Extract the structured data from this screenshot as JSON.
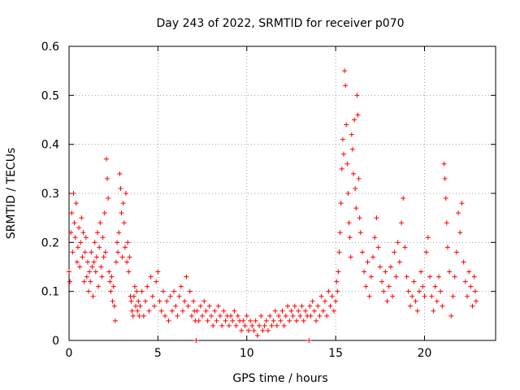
{
  "chart_data": {
    "type": "scatter",
    "title": "Day 243 of 2022, SRMTID for receiver p070",
    "xlabel": "GPS time / hours",
    "ylabel": "SRMTID / TECUs",
    "xlim": [
      0,
      24
    ],
    "ylim": [
      0,
      0.6
    ],
    "xticks": [
      0,
      5,
      10,
      15,
      20
    ],
    "yticks": [
      0,
      0.1,
      0.2,
      0.3,
      0.4,
      0.5,
      0.6
    ],
    "xtick_labels": [
      "0",
      "5",
      "10",
      "15",
      "20"
    ],
    "ytick_labels": [
      "0",
      "0.1",
      "0.2",
      "0.3",
      "0.4",
      "0.5",
      "0.6"
    ],
    "grid": true,
    "marker": "+",
    "color": "#ff0000",
    "series": [
      {
        "name": "SRMTID",
        "points": [
          [
            0.0,
            0.14
          ],
          [
            0.05,
            0.12
          ],
          [
            0.1,
            0.22
          ],
          [
            0.15,
            0.26
          ],
          [
            0.2,
            0.18
          ],
          [
            0.25,
            0.3
          ],
          [
            0.3,
            0.24
          ],
          [
            0.35,
            0.21
          ],
          [
            0.4,
            0.28
          ],
          [
            0.45,
            0.16
          ],
          [
            0.5,
            0.19
          ],
          [
            0.55,
            0.23
          ],
          [
            0.6,
            0.15
          ],
          [
            0.65,
            0.2
          ],
          [
            0.7,
            0.25
          ],
          [
            0.75,
            0.17
          ],
          [
            0.8,
            0.22
          ],
          [
            0.85,
            0.12
          ],
          [
            0.9,
            0.18
          ],
          [
            0.95,
            0.21
          ],
          [
            1.0,
            0.13
          ],
          [
            1.05,
            0.16
          ],
          [
            1.1,
            0.1
          ],
          [
            1.15,
            0.14
          ],
          [
            1.2,
            0.12
          ],
          [
            1.25,
            0.18
          ],
          [
            1.3,
            0.15
          ],
          [
            1.35,
            0.09
          ],
          [
            1.4,
            0.16
          ],
          [
            1.45,
            0.2
          ],
          [
            1.5,
            0.14
          ],
          [
            1.55,
            0.17
          ],
          [
            1.6,
            0.22
          ],
          [
            1.65,
            0.11
          ],
          [
            1.7,
            0.19
          ],
          [
            1.75,
            0.24
          ],
          [
            1.8,
            0.15
          ],
          [
            1.85,
            0.13
          ],
          [
            1.9,
            0.21
          ],
          [
            1.95,
            0.17
          ],
          [
            2.0,
            0.26
          ],
          [
            2.05,
            0.18
          ],
          [
            2.1,
            0.37
          ],
          [
            2.15,
            0.33
          ],
          [
            2.2,
            0.29
          ],
          [
            2.25,
            0.14
          ],
          [
            2.3,
            0.12
          ],
          [
            2.35,
            0.1
          ],
          [
            2.4,
            0.13
          ],
          [
            2.45,
            0.08
          ],
          [
            2.5,
            0.11
          ],
          [
            2.55,
            0.07
          ],
          [
            2.6,
            0.04
          ],
          [
            2.65,
            0.16
          ],
          [
            2.7,
            0.2
          ],
          [
            2.75,
            0.18
          ],
          [
            2.8,
            0.22
          ],
          [
            2.85,
            0.34
          ],
          [
            2.9,
            0.31
          ],
          [
            2.95,
            0.26
          ],
          [
            3.0,
            0.17
          ],
          [
            3.05,
            0.28
          ],
          [
            3.1,
            0.24
          ],
          [
            3.15,
            0.19
          ],
          [
            3.2,
            0.3
          ],
          [
            3.25,
            0.16
          ],
          [
            3.3,
            0.2
          ],
          [
            3.35,
            0.14
          ],
          [
            3.4,
            0.17
          ],
          [
            3.45,
            0.09
          ],
          [
            3.5,
            0.08
          ],
          [
            3.55,
            0.06
          ],
          [
            3.6,
            0.05
          ],
          [
            3.65,
            0.09
          ],
          [
            3.7,
            0.11
          ],
          [
            3.75,
            0.07
          ],
          [
            3.8,
            0.1
          ],
          [
            3.85,
            0.06
          ],
          [
            3.9,
            0.08
          ],
          [
            3.95,
            0.05
          ],
          [
            4.0,
            0.07
          ],
          [
            4.1,
            0.1
          ],
          [
            4.2,
            0.05
          ],
          [
            4.3,
            0.08
          ],
          [
            4.4,
            0.11
          ],
          [
            4.5,
            0.06
          ],
          [
            4.6,
            0.13
          ],
          [
            4.7,
            0.09
          ],
          [
            4.8,
            0.07
          ],
          [
            4.9,
            0.12
          ],
          [
            5.0,
            0.14
          ],
          [
            5.1,
            0.08
          ],
          [
            5.2,
            0.06
          ],
          [
            5.3,
            0.1
          ],
          [
            5.4,
            0.05
          ],
          [
            5.5,
            0.08
          ],
          [
            5.6,
            0.04
          ],
          [
            5.7,
            0.09
          ],
          [
            5.8,
            0.06
          ],
          [
            5.9,
            0.1
          ],
          [
            6.0,
            0.07
          ],
          [
            6.1,
            0.05
          ],
          [
            6.2,
            0.09
          ],
          [
            6.3,
            0.11
          ],
          [
            6.4,
            0.06
          ],
          [
            6.5,
            0.08
          ],
          [
            6.6,
            0.13
          ],
          [
            6.7,
            0.07
          ],
          [
            6.8,
            0.1
          ],
          [
            6.9,
            0.05
          ],
          [
            7.0,
            0.08
          ],
          [
            7.05,
            0.06
          ],
          [
            7.1,
            0.04
          ],
          [
            7.15,
            0.0
          ],
          [
            7.2,
            0.06
          ],
          [
            7.3,
            0.04
          ],
          [
            7.4,
            0.07
          ],
          [
            7.5,
            0.05
          ],
          [
            7.6,
            0.08
          ],
          [
            7.7,
            0.06
          ],
          [
            7.8,
            0.04
          ],
          [
            7.9,
            0.07
          ],
          [
            8.0,
            0.05
          ],
          [
            8.1,
            0.03
          ],
          [
            8.2,
            0.06
          ],
          [
            8.3,
            0.04
          ],
          [
            8.4,
            0.07
          ],
          [
            8.5,
            0.05
          ],
          [
            8.6,
            0.03
          ],
          [
            8.7,
            0.06
          ],
          [
            8.8,
            0.04
          ],
          [
            8.9,
            0.05
          ],
          [
            9.0,
            0.03
          ],
          [
            9.1,
            0.05
          ],
          [
            9.2,
            0.04
          ],
          [
            9.3,
            0.06
          ],
          [
            9.4,
            0.03
          ],
          [
            9.5,
            0.05
          ],
          [
            9.6,
            0.04
          ],
          [
            9.7,
            0.02
          ],
          [
            9.8,
            0.04
          ],
          [
            9.9,
            0.03
          ],
          [
            10.0,
            0.05
          ],
          [
            10.1,
            0.02
          ],
          [
            10.2,
            0.04
          ],
          [
            10.3,
            0.03
          ],
          [
            10.4,
            0.02
          ],
          [
            10.5,
            0.04
          ],
          [
            10.6,
            0.01
          ],
          [
            10.7,
            0.03
          ],
          [
            10.8,
            0.05
          ],
          [
            10.9,
            0.02
          ],
          [
            11.0,
            0.03
          ],
          [
            11.1,
            0.04
          ],
          [
            11.2,
            0.02
          ],
          [
            11.3,
            0.05
          ],
          [
            11.4,
            0.03
          ],
          [
            11.5,
            0.04
          ],
          [
            11.6,
            0.06
          ],
          [
            11.7,
            0.03
          ],
          [
            11.8,
            0.05
          ],
          [
            11.9,
            0.04
          ],
          [
            12.0,
            0.06
          ],
          [
            12.1,
            0.03
          ],
          [
            12.2,
            0.05
          ],
          [
            12.3,
            0.07
          ],
          [
            12.4,
            0.04
          ],
          [
            12.5,
            0.06
          ],
          [
            12.6,
            0.05
          ],
          [
            12.7,
            0.07
          ],
          [
            12.8,
            0.04
          ],
          [
            12.9,
            0.06
          ],
          [
            13.0,
            0.05
          ],
          [
            13.1,
            0.07
          ],
          [
            13.2,
            0.04
          ],
          [
            13.3,
            0.06
          ],
          [
            13.4,
            0.05
          ],
          [
            13.5,
            0.0
          ],
          [
            13.55,
            0.07
          ],
          [
            13.6,
            0.05
          ],
          [
            13.7,
            0.08
          ],
          [
            13.8,
            0.06
          ],
          [
            13.9,
            0.04
          ],
          [
            14.0,
            0.07
          ],
          [
            14.1,
            0.05
          ],
          [
            14.2,
            0.09
          ],
          [
            14.3,
            0.06
          ],
          [
            14.4,
            0.08
          ],
          [
            14.5,
            0.05
          ],
          [
            14.6,
            0.1
          ],
          [
            14.7,
            0.07
          ],
          [
            14.8,
            0.09
          ],
          [
            14.9,
            0.06
          ],
          [
            15.0,
            0.08
          ],
          [
            15.05,
            0.12
          ],
          [
            15.1,
            0.1
          ],
          [
            15.15,
            0.14
          ],
          [
            15.2,
            0.18
          ],
          [
            15.25,
            0.22
          ],
          [
            15.3,
            0.28
          ],
          [
            15.35,
            0.35
          ],
          [
            15.4,
            0.41
          ],
          [
            15.45,
            0.38
          ],
          [
            15.5,
            0.55
          ],
          [
            15.55,
            0.52
          ],
          [
            15.6,
            0.44
          ],
          [
            15.65,
            0.36
          ],
          [
            15.7,
            0.3
          ],
          [
            15.75,
            0.24
          ],
          [
            15.8,
            0.21
          ],
          [
            15.85,
            0.17
          ],
          [
            15.9,
            0.42
          ],
          [
            15.95,
            0.39
          ],
          [
            16.0,
            0.34
          ],
          [
            16.05,
            0.45
          ],
          [
            16.1,
            0.31
          ],
          [
            16.15,
            0.27
          ],
          [
            16.2,
            0.5
          ],
          [
            16.25,
            0.46
          ],
          [
            16.3,
            0.33
          ],
          [
            16.35,
            0.25
          ],
          [
            16.4,
            0.22
          ],
          [
            16.5,
            0.18
          ],
          [
            16.6,
            0.14
          ],
          [
            16.7,
            0.11
          ],
          [
            16.8,
            0.16
          ],
          [
            16.9,
            0.09
          ],
          [
            17.0,
            0.13
          ],
          [
            17.1,
            0.17
          ],
          [
            17.2,
            0.21
          ],
          [
            17.3,
            0.25
          ],
          [
            17.4,
            0.19
          ],
          [
            17.5,
            0.15
          ],
          [
            17.6,
            0.12
          ],
          [
            17.7,
            0.1
          ],
          [
            17.8,
            0.14
          ],
          [
            17.9,
            0.08
          ],
          [
            18.0,
            0.11
          ],
          [
            18.1,
            0.15
          ],
          [
            18.2,
            0.09
          ],
          [
            18.3,
            0.18
          ],
          [
            18.4,
            0.13
          ],
          [
            18.5,
            0.2
          ],
          [
            18.6,
            0.16
          ],
          [
            18.7,
            0.24
          ],
          [
            18.8,
            0.29
          ],
          [
            18.9,
            0.19
          ],
          [
            19.0,
            0.13
          ],
          [
            19.1,
            0.1
          ],
          [
            19.2,
            0.07
          ],
          [
            19.3,
            0.09
          ],
          [
            19.4,
            0.12
          ],
          [
            19.5,
            0.08
          ],
          [
            19.6,
            0.06
          ],
          [
            19.7,
            0.1
          ],
          [
            19.8,
            0.14
          ],
          [
            19.9,
            0.11
          ],
          [
            20.0,
            0.09
          ],
          [
            20.1,
            0.18
          ],
          [
            20.2,
            0.21
          ],
          [
            20.3,
            0.13
          ],
          [
            20.4,
            0.09
          ],
          [
            20.5,
            0.06
          ],
          [
            20.6,
            0.11
          ],
          [
            20.7,
            0.08
          ],
          [
            20.8,
            0.13
          ],
          [
            20.9,
            0.1
          ],
          [
            21.0,
            0.07
          ],
          [
            21.1,
            0.36
          ],
          [
            21.15,
            0.33
          ],
          [
            21.2,
            0.29
          ],
          [
            21.25,
            0.24
          ],
          [
            21.3,
            0.19
          ],
          [
            21.4,
            0.14
          ],
          [
            21.5,
            0.05
          ],
          [
            21.6,
            0.09
          ],
          [
            21.7,
            0.13
          ],
          [
            21.8,
            0.18
          ],
          [
            21.9,
            0.26
          ],
          [
            22.0,
            0.22
          ],
          [
            22.1,
            0.28
          ],
          [
            22.2,
            0.16
          ],
          [
            22.3,
            0.12
          ],
          [
            22.4,
            0.09
          ],
          [
            22.5,
            0.14
          ],
          [
            22.6,
            0.11
          ],
          [
            22.7,
            0.07
          ],
          [
            22.8,
            0.13
          ],
          [
            22.85,
            0.1
          ],
          [
            22.9,
            0.08
          ]
        ]
      }
    ]
  }
}
